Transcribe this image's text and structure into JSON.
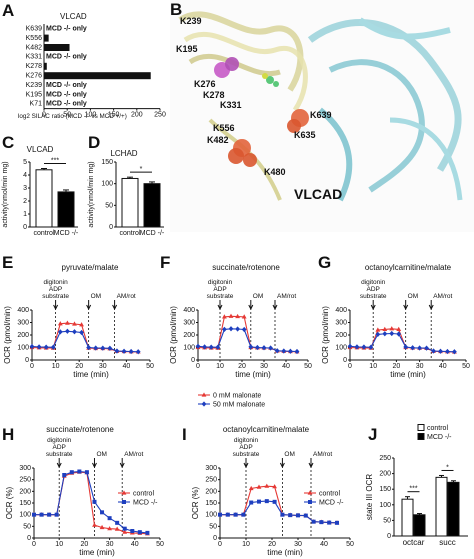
{
  "panel_labels": [
    "A",
    "B",
    "C",
    "D",
    "E",
    "F",
    "G",
    "H",
    "I",
    "J"
  ],
  "chart_data": [
    {
      "id": "A",
      "type": "bar",
      "orientation": "horizontal",
      "title": "VLCAD",
      "categories": [
        "K639",
        "K556",
        "K482",
        "K331",
        "K278",
        "K276",
        "K239",
        "K195",
        "K71"
      ],
      "bar_notes": [
        "MCD -/- only",
        "",
        "",
        "MCD -/- only",
        "",
        "",
        "MCD -/- only",
        "MCD -/- only",
        "MCD -/- only"
      ],
      "values": [
        0,
        10,
        55,
        0,
        6,
        230,
        0,
        0,
        0
      ],
      "xticks": [
        0,
        50,
        100,
        150,
        200,
        250
      ],
      "xlim": [
        0,
        250
      ],
      "xlabel": "log2 SILAC ratio (MCD -/- vs MCD +/+)"
    },
    {
      "id": "C",
      "type": "bar",
      "title": "VLCAD",
      "categories": [
        "control",
        "MCD -/-"
      ],
      "values": [
        4.4,
        2.7
      ],
      "errors": [
        0.1,
        0.15
      ],
      "colors": [
        "#ffffff",
        "#000000"
      ],
      "ylabel": "activity(nmol/min mg)",
      "ylim": [
        0,
        5
      ],
      "yticks": [
        0,
        1,
        2,
        3,
        4,
        5
      ],
      "significance": "***"
    },
    {
      "id": "D",
      "type": "bar",
      "title": "LCHAD",
      "categories": [
        "control",
        "MCD -/-"
      ],
      "values": [
        112,
        100
      ],
      "errors": [
        3,
        4
      ],
      "colors": [
        "#ffffff",
        "#000000"
      ],
      "ylabel": "activity(nmol/min mg)",
      "ylim": [
        0,
        150
      ],
      "yticks": [
        0,
        50,
        100,
        150
      ],
      "significance": "*"
    },
    {
      "id": "E",
      "type": "line",
      "title": "pyruvate/malate",
      "xlabel": "time (min)",
      "ylabel": "OCR (pmol/min)",
      "xlim": [
        0,
        50
      ],
      "xticks": [
        0,
        10,
        20,
        30,
        40,
        50
      ],
      "ylim": [
        0,
        400
      ],
      "yticks": [
        0,
        100,
        200,
        300,
        400
      ],
      "annotations": [
        {
          "x": 10,
          "label": "digitonin\nADP\nsubstrate"
        },
        {
          "x": 24,
          "label": "OM"
        },
        {
          "x": 35,
          "label": "AM/rot"
        }
      ],
      "x": [
        0,
        3,
        6,
        9,
        12,
        15,
        18,
        21,
        24,
        27,
        30,
        33,
        36,
        39,
        42,
        45
      ],
      "series": [
        {
          "name": "0 mM malonate",
          "color": "#e53935",
          "marker": "triangle",
          "values": [
            100,
            98,
            96,
            95,
            290,
            295,
            288,
            282,
            95,
            92,
            92,
            90,
            70,
            68,
            66,
            65
          ]
        },
        {
          "name": "50 mM malonate",
          "color": "#1e3fbf",
          "marker": "diamond",
          "values": [
            108,
            105,
            103,
            102,
            225,
            230,
            226,
            220,
            100,
            96,
            95,
            94,
            72,
            70,
            68,
            66
          ]
        }
      ]
    },
    {
      "id": "F",
      "type": "line",
      "title": "succinate/rotenone",
      "xlabel": "time (min)",
      "ylabel": "OCR (pmol/min)",
      "xlim": [
        0,
        50
      ],
      "xticks": [
        0,
        10,
        20,
        30,
        40,
        50
      ],
      "ylim": [
        0,
        400
      ],
      "yticks": [
        0,
        100,
        200,
        300,
        400
      ],
      "annotations": [
        {
          "x": 10,
          "label": "digitonin\nADP\nsubstrate"
        },
        {
          "x": 24,
          "label": "OM"
        },
        {
          "x": 35,
          "label": "AM/rot"
        }
      ],
      "x": [
        0,
        3,
        6,
        9,
        12,
        15,
        18,
        21,
        24,
        27,
        30,
        33,
        36,
        39,
        42,
        45
      ],
      "series": [
        {
          "name": "0 mM malonate",
          "color": "#e53935",
          "marker": "triangle",
          "values": [
            100,
            98,
            96,
            95,
            345,
            350,
            348,
            345,
            100,
            97,
            96,
            95,
            72,
            70,
            68,
            66
          ]
        },
        {
          "name": "50 mM malonate",
          "color": "#1e3fbf",
          "marker": "diamond",
          "values": [
            110,
            105,
            103,
            102,
            245,
            250,
            248,
            244,
            105,
            100,
            98,
            96,
            74,
            72,
            70,
            68
          ]
        }
      ],
      "legend": [
        "0 mM malonate",
        "50 mM malonate"
      ]
    },
    {
      "id": "G",
      "type": "line",
      "title": "octanoylcarnitine/malate",
      "xlabel": "time (min)",
      "ylabel": "OCR (pmol/min)",
      "xlim": [
        0,
        50
      ],
      "xticks": [
        0,
        10,
        20,
        30,
        40,
        50
      ],
      "ylim": [
        0,
        400
      ],
      "yticks": [
        0,
        100,
        200,
        300,
        400
      ],
      "annotations": [
        {
          "x": 10,
          "label": "digitonin\nADP\nsubstrate"
        },
        {
          "x": 24,
          "label": "OM"
        },
        {
          "x": 35,
          "label": "AM/rot"
        }
      ],
      "x": [
        0,
        3,
        6,
        9,
        12,
        15,
        18,
        21,
        24,
        27,
        30,
        33,
        36,
        39,
        42,
        45
      ],
      "series": [
        {
          "name": "0 mM malonate",
          "color": "#e53935",
          "marker": "triangle",
          "values": [
            100,
            98,
            96,
            95,
            240,
            245,
            250,
            245,
            100,
            96,
            95,
            93,
            70,
            68,
            66,
            64
          ]
        },
        {
          "name": "50 mM malonate",
          "color": "#1e3fbf",
          "marker": "diamond",
          "values": [
            110,
            105,
            104,
            102,
            205,
            210,
            212,
            208,
            104,
            98,
            96,
            95,
            72,
            70,
            68,
            66
          ]
        }
      ]
    },
    {
      "id": "H",
      "type": "line",
      "title": "succinate/rotenone",
      "xlabel": "time (min)",
      "ylabel": "OCR (%)",
      "xlim": [
        0,
        50
      ],
      "xticks": [
        0,
        10,
        20,
        30,
        40,
        50
      ],
      "ylim": [
        0,
        300
      ],
      "yticks": [
        0,
        50,
        100,
        150,
        200,
        250,
        300
      ],
      "annotations": [
        {
          "x": 10,
          "label": "digitonin\nADP\nsubstrate"
        },
        {
          "x": 24,
          "label": "OM"
        },
        {
          "x": 35,
          "label": "AM/rot"
        }
      ],
      "x": [
        0,
        3,
        6,
        9,
        12,
        15,
        18,
        21,
        24,
        27,
        30,
        33,
        36,
        39,
        42,
        45
      ],
      "series": [
        {
          "name": "control",
          "color": "#e53935",
          "marker": "triangle",
          "values": [
            100,
            100,
            100,
            100,
            265,
            278,
            282,
            280,
            55,
            45,
            40,
            38,
            25,
            22,
            20,
            18
          ]
        },
        {
          "name": "MCD -/-",
          "color": "#1e3fbf",
          "marker": "square",
          "values": [
            100,
            100,
            100,
            100,
            270,
            282,
            285,
            282,
            155,
            110,
            85,
            65,
            40,
            30,
            25,
            22
          ]
        }
      ],
      "legend": [
        "control",
        "MCD -/-"
      ]
    },
    {
      "id": "I",
      "type": "line",
      "title": "octanoylcarnitine/malate",
      "xlabel": "time (min)",
      "ylabel": "OCR (%)",
      "xlim": [
        0,
        50
      ],
      "xticks": [
        0,
        10,
        20,
        30,
        40,
        50
      ],
      "ylim": [
        0,
        300
      ],
      "yticks": [
        0,
        50,
        100,
        150,
        200,
        250,
        300
      ],
      "annotations": [
        {
          "x": 10,
          "label": "digitonin\nADP\nsubstrate"
        },
        {
          "x": 24,
          "label": "OM"
        },
        {
          "x": 35,
          "label": "AM/rot"
        }
      ],
      "x": [
        0,
        3,
        6,
        9,
        12,
        15,
        18,
        21,
        24,
        27,
        30,
        33,
        36,
        39,
        42,
        45
      ],
      "series": [
        {
          "name": "control",
          "color": "#e53935",
          "marker": "triangle",
          "values": [
            100,
            100,
            100,
            100,
            212,
            218,
            222,
            220,
            100,
            98,
            97,
            96,
            70,
            68,
            66,
            65
          ]
        },
        {
          "name": "MCD -/-",
          "color": "#1e3fbf",
          "marker": "square",
          "values": [
            100,
            100,
            100,
            100,
            152,
            156,
            158,
            155,
            100,
            98,
            97,
            96,
            70,
            68,
            66,
            65
          ]
        }
      ],
      "legend": [
        "control",
        "MCD -/-"
      ]
    },
    {
      "id": "J",
      "type": "bar",
      "title": "",
      "categories": [
        "octcar",
        "succ"
      ],
      "series": [
        {
          "name": "control",
          "color": "#ffffff",
          "values": [
            118,
            188
          ],
          "errors": [
            8,
            6
          ]
        },
        {
          "name": "MCD -/-",
          "color": "#000000",
          "values": [
            68,
            172
          ],
          "errors": [
            4,
            5
          ]
        }
      ],
      "ylabel": "state III OCR",
      "ylim": [
        0,
        250
      ],
      "yticks": [
        0,
        50,
        100,
        150,
        200,
        250
      ],
      "significance": [
        "***",
        "*"
      ]
    }
  ],
  "structure": {
    "title": "VLCAD",
    "residues": [
      "K239",
      "K195",
      "K276",
      "K278",
      "K331",
      "K639",
      "K556",
      "K635",
      "K482",
      "K480"
    ]
  }
}
